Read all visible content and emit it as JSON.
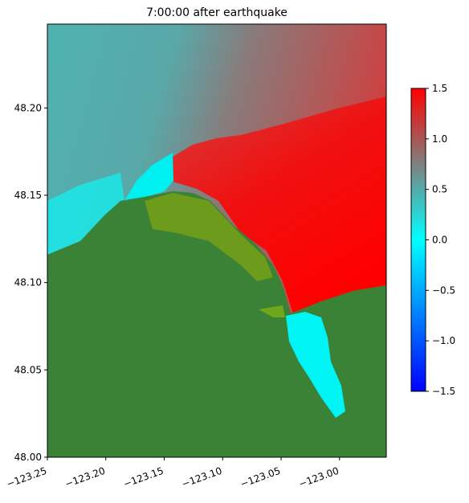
{
  "chart_data": {
    "type": "heatmap",
    "title": "7:00:00 after earthquake",
    "xlim": [
      -123.25,
      -122.96
    ],
    "xticks": [
      {
        "value": -123.25,
        "label": "−123.25"
      },
      {
        "value": -123.2,
        "label": "−123.20"
      },
      {
        "value": -123.15,
        "label": "−123.15"
      },
      {
        "value": -123.1,
        "label": "−123.10"
      },
      {
        "value": -123.05,
        "label": "−123.05"
      },
      {
        "value": -123.0,
        "label": "−123.00"
      }
    ],
    "ylim": [
      48.0,
      48.248
    ],
    "yticks": [
      {
        "value": 48.0,
        "label": "48.00"
      },
      {
        "value": 48.05,
        "label": "48.05"
      },
      {
        "value": 48.1,
        "label": "48.10"
      },
      {
        "value": 48.15,
        "label": "48.15"
      },
      {
        "value": 48.2,
        "label": "48.20"
      }
    ],
    "zlim": [
      -1.5,
      1.5
    ],
    "zticks": [
      {
        "value": -1.5,
        "label": "−1.5"
      },
      {
        "value": -1.0,
        "label": "−1.0"
      },
      {
        "value": -0.5,
        "label": "−0.5"
      },
      {
        "value": 0.0,
        "label": "0.0"
      },
      {
        "value": 0.5,
        "label": "0.5"
      },
      {
        "value": 1.0,
        "label": "1.0"
      },
      1.5
    ],
    "colormap": [
      "#0000ff",
      "#00ffff",
      "#808080",
      "#ff0000"
    ]
  }
}
